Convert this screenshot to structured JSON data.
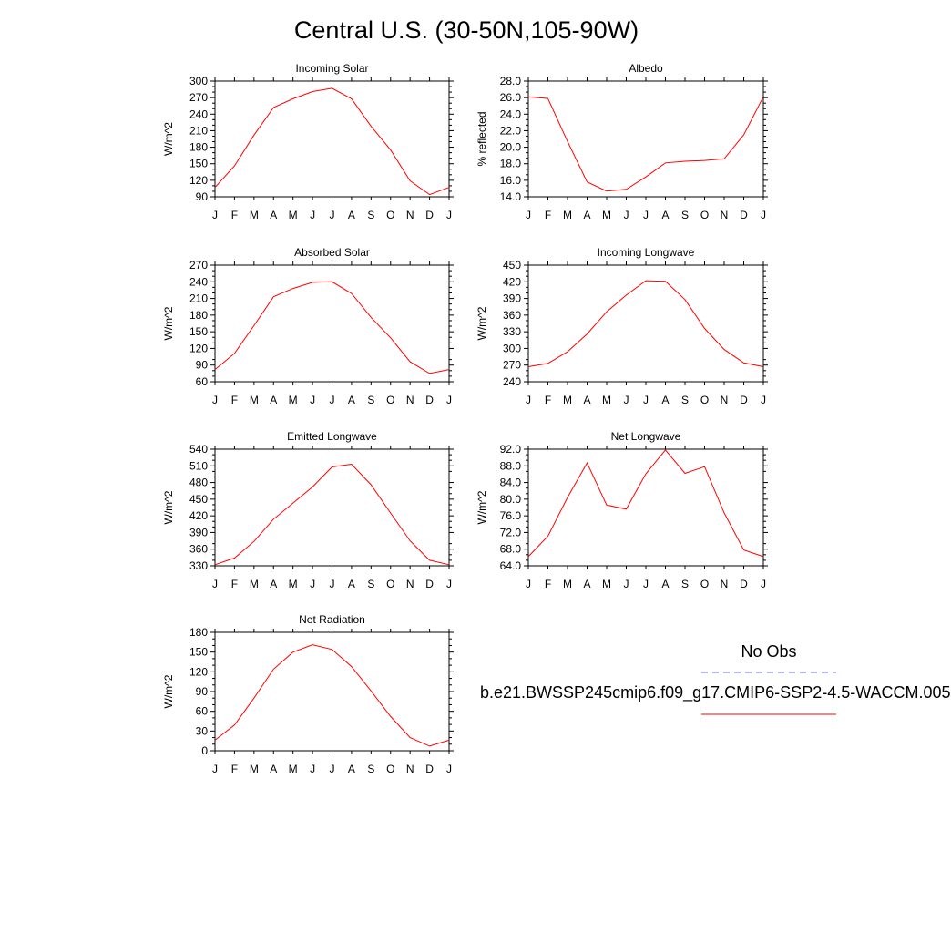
{
  "figure": {
    "title": "Central U.S. (30-50N,105-90W)"
  },
  "legend": {
    "obs_label": "No Obs",
    "obs_color": "#6b6bff",
    "model_label": "b.e21.BWSSP245cmip6.f09_g17.CMIP6-SSP2-4.5-WACCM.005",
    "model_color": "#ff0000"
  },
  "chart_data": [
    {
      "type": "line",
      "title": "Incoming Solar",
      "ylabel": "W/m^2",
      "xlabel": "",
      "x": [
        "J",
        "F",
        "M",
        "A",
        "M",
        "J",
        "J",
        "A",
        "S",
        "O",
        "N",
        "D",
        "J"
      ],
      "ylim": [
        90,
        300
      ],
      "yticks": [
        "90",
        "120",
        "150",
        "180",
        "210",
        "240",
        "270",
        "300"
      ],
      "series": [
        {
          "values": [
            107,
            146,
            202,
            252,
            268,
            281,
            287,
            268,
            218,
            175,
            119,
            94,
            107
          ],
          "color": "#ff0000"
        }
      ]
    },
    {
      "type": "line",
      "title": "Albedo",
      "ylabel": "% reflected",
      "xlabel": "",
      "x": [
        "J",
        "F",
        "M",
        "A",
        "M",
        "J",
        "J",
        "A",
        "S",
        "O",
        "N",
        "D",
        "J"
      ],
      "ylim": [
        14.0,
        28.0
      ],
      "yticks": [
        "14.0",
        "16.0",
        "18.0",
        "20.0",
        "22.0",
        "24.0",
        "26.0",
        "28.0"
      ],
      "series": [
        {
          "values": [
            26.1,
            25.9,
            20.7,
            15.8,
            14.7,
            14.9,
            16.4,
            18.1,
            18.3,
            18.4,
            18.6,
            21.5,
            26.1
          ],
          "color": "#ff0000"
        }
      ]
    },
    {
      "type": "line",
      "title": "Absorbed Solar",
      "ylabel": "W/m^2",
      "xlabel": "",
      "x": [
        "J",
        "F",
        "M",
        "A",
        "M",
        "J",
        "J",
        "A",
        "S",
        "O",
        "N",
        "D",
        "J"
      ],
      "ylim": [
        60,
        270
      ],
      "yticks": [
        "60",
        "90",
        "120",
        "150",
        "180",
        "210",
        "240",
        "270"
      ],
      "series": [
        {
          "values": [
            82,
            111,
            161,
            213,
            228,
            239,
            240,
            219,
            176,
            139,
            96,
            75,
            82
          ],
          "color": "#ff0000"
        }
      ]
    },
    {
      "type": "line",
      "title": "Incoming Longwave",
      "ylabel": "W/m^2",
      "xlabel": "",
      "x": [
        "J",
        "F",
        "M",
        "A",
        "M",
        "J",
        "J",
        "A",
        "S",
        "O",
        "N",
        "D",
        "J"
      ],
      "ylim": [
        240,
        450
      ],
      "yticks": [
        "240",
        "270",
        "300",
        "330",
        "360",
        "390",
        "420",
        "450"
      ],
      "series": [
        {
          "values": [
            267,
            273,
            294,
            326,
            366,
            396,
            422,
            421,
            388,
            336,
            298,
            274,
            267
          ],
          "color": "#ff0000"
        }
      ]
    },
    {
      "type": "line",
      "title": "Emitted Longwave",
      "ylabel": "W/m^2",
      "xlabel": "",
      "x": [
        "J",
        "F",
        "M",
        "A",
        "M",
        "J",
        "J",
        "A",
        "S",
        "O",
        "N",
        "D",
        "J"
      ],
      "ylim": [
        330,
        540
      ],
      "yticks": [
        "330",
        "360",
        "390",
        "420",
        "450",
        "480",
        "510",
        "540"
      ],
      "series": [
        {
          "values": [
            332,
            344,
            374,
            414,
            443,
            472,
            508,
            513,
            476,
            425,
            375,
            340,
            332
          ],
          "color": "#ff0000"
        }
      ]
    },
    {
      "type": "line",
      "title": "Net Longwave",
      "ylabel": "W/m^2",
      "xlabel": "",
      "x": [
        "J",
        "F",
        "M",
        "A",
        "M",
        "J",
        "J",
        "A",
        "S",
        "O",
        "N",
        "D",
        "J"
      ],
      "ylim": [
        64.0,
        92.0
      ],
      "yticks": [
        "64.0",
        "68.0",
        "72.0",
        "76.0",
        "80.0",
        "84.0",
        "88.0",
        "92.0"
      ],
      "series": [
        {
          "values": [
            66.2,
            71.1,
            80.4,
            88.7,
            78.6,
            77.6,
            86.1,
            91.8,
            86.2,
            87.8,
            76.7,
            67.8,
            66.2
          ],
          "color": "#ff0000"
        }
      ]
    },
    {
      "type": "line",
      "title": "Net Radiation",
      "ylabel": "W/m^2",
      "xlabel": "",
      "x": [
        "J",
        "F",
        "M",
        "A",
        "M",
        "J",
        "J",
        "A",
        "S",
        "O",
        "N",
        "D",
        "J"
      ],
      "ylim": [
        0,
        180
      ],
      "yticks": [
        "0",
        "30",
        "60",
        "90",
        "120",
        "150",
        "180"
      ],
      "series": [
        {
          "values": [
            16,
            39,
            80,
            124,
            150,
            161,
            154,
            128,
            91,
            52,
            20,
            7,
            16
          ],
          "color": "#ff0000"
        }
      ]
    }
  ]
}
